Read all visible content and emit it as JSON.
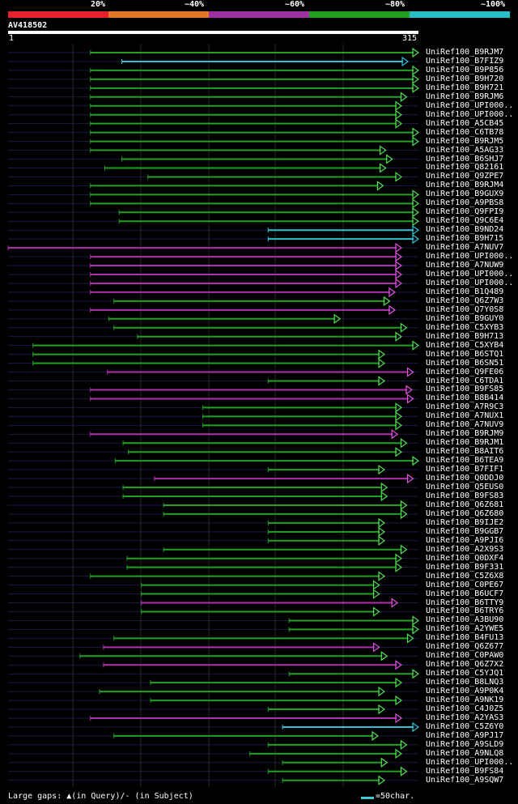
{
  "scale_bar": {
    "labels": [
      "20%",
      "~40%",
      "~60%",
      "~80%",
      "~100%"
    ],
    "colors": [
      "#e8202a",
      "#e07828",
      "#a030a0",
      "#20a020",
      "#28c0c8"
    ]
  },
  "query": {
    "id": "AV418502",
    "start": "1",
    "end": "315"
  },
  "colors": {
    "green": "#22a022",
    "magenta": "#b030b0",
    "cyan": "#30c0d0",
    "dark": "#1a1a4a",
    "arrow_green": "#50e050",
    "arrow_magenta": "#e050e0"
  },
  "hits": [
    {
      "label": "UniRef100_B9RJM7",
      "color": "green",
      "s": 64,
      "e": 315
    },
    {
      "label": "UniRef100_B7FIZ9",
      "color": "cyan",
      "s": 88,
      "e": 307
    },
    {
      "label": "UniRef100_B9P856",
      "color": "green",
      "s": 64,
      "e": 315
    },
    {
      "label": "UniRef100_B9H720",
      "color": "green",
      "s": 64,
      "e": 315
    },
    {
      "label": "UniRef100_B9H721",
      "color": "green",
      "s": 64,
      "e": 315
    },
    {
      "label": "UniRef100_B9RJM6",
      "color": "green",
      "s": 64,
      "e": 306
    },
    {
      "label": "UniRef100_UPI000..",
      "color": "green",
      "s": 64,
      "e": 302
    },
    {
      "label": "UniRef100_UPI000..",
      "color": "green",
      "s": 64,
      "e": 302
    },
    {
      "label": "UniRef100_A5CB45",
      "color": "green",
      "s": 64,
      "e": 302
    },
    {
      "label": "UniRef100_C6TB78",
      "color": "green",
      "s": 64,
      "e": 315
    },
    {
      "label": "UniRef100_B9RJM5",
      "color": "green",
      "s": 64,
      "e": 315
    },
    {
      "label": "UniRef100_A5AG33",
      "color": "green",
      "s": 64,
      "e": 290
    },
    {
      "label": "UniRef100_B6SHJ7",
      "color": "green",
      "s": 88,
      "e": 295
    },
    {
      "label": "UniRef100_Q82161",
      "color": "green",
      "s": 75,
      "e": 290
    },
    {
      "label": "UniRef100_Q9ZPE7",
      "color": "green",
      "s": 108,
      "e": 302
    },
    {
      "label": "UniRef100_B9RJM4",
      "color": "green",
      "s": 64,
      "e": 288
    },
    {
      "label": "UniRef100_B9GUX9",
      "color": "green",
      "s": 64,
      "e": 315
    },
    {
      "label": "UniRef100_A9PBS8",
      "color": "green",
      "s": 64,
      "e": 315
    },
    {
      "label": "UniRef100_Q9FPI9",
      "color": "green",
      "s": 86,
      "e": 315
    },
    {
      "label": "UniRef100_Q9C6E4",
      "color": "green",
      "s": 86,
      "e": 315
    },
    {
      "label": "UniRef100_B9ND24",
      "color": "cyan",
      "s": 200,
      "e": 315
    },
    {
      "label": "UniRef100_B9H715",
      "color": "cyan",
      "s": 200,
      "e": 315
    },
    {
      "label": "UniRef100_A7NUV7",
      "color": "magenta",
      "s": 1,
      "e": 302
    },
    {
      "label": "UniRef100_UPI000..",
      "color": "magenta",
      "s": 64,
      "e": 302
    },
    {
      "label": "UniRef100_A7NUW9",
      "color": "magenta",
      "s": 64,
      "e": 302
    },
    {
      "label": "UniRef100_UPI000..",
      "color": "magenta",
      "s": 64,
      "e": 302
    },
    {
      "label": "UniRef100_UPI000..",
      "color": "magenta",
      "s": 64,
      "e": 302
    },
    {
      "label": "UniRef100_B1Q489",
      "color": "magenta",
      "s": 64,
      "e": 297
    },
    {
      "label": "UniRef100_Q6Z7W3",
      "color": "green",
      "s": 82,
      "e": 293
    },
    {
      "label": "UniRef100_Q7Y0S8",
      "color": "magenta",
      "s": 64,
      "e": 297
    },
    {
      "label": "UniRef100_B9GUY0",
      "color": "green",
      "s": 78,
      "e": 255
    },
    {
      "label": "UniRef100_C5XYB3",
      "color": "green",
      "s": 82,
      "e": 306
    },
    {
      "label": "UniRef100_B9H713",
      "color": "green",
      "s": 100,
      "e": 302
    },
    {
      "label": "UniRef100_C5XYB4",
      "color": "green",
      "s": 20,
      "e": 315
    },
    {
      "label": "UniRef100_B6STQ1",
      "color": "green",
      "s": 20,
      "e": 289
    },
    {
      "label": "UniRef100_B6SN51",
      "color": "green",
      "s": 20,
      "e": 289
    },
    {
      "label": "UniRef100_Q9FE06",
      "color": "magenta",
      "s": 77,
      "e": 311
    },
    {
      "label": "UniRef100_C6TDA1",
      "color": "green",
      "s": 200,
      "e": 289
    },
    {
      "label": "UniRef100_B9FS85",
      "color": "magenta",
      "s": 64,
      "e": 310
    },
    {
      "label": "UniRef100_B8B414",
      "color": "magenta",
      "s": 64,
      "e": 311
    },
    {
      "label": "UniRef100_A7R9C3",
      "color": "green",
      "s": 150,
      "e": 302
    },
    {
      "label": "UniRef100_A7NUX1",
      "color": "green",
      "s": 150,
      "e": 302
    },
    {
      "label": "UniRef100_A7NUV9",
      "color": "green",
      "s": 150,
      "e": 302
    },
    {
      "label": "UniRef100_B9RJM9",
      "color": "magenta",
      "s": 64,
      "e": 299
    },
    {
      "label": "UniRef100_B9RJM1",
      "color": "green",
      "s": 89,
      "e": 306
    },
    {
      "label": "UniRef100_B8AIT6",
      "color": "green",
      "s": 93,
      "e": 302
    },
    {
      "label": "UniRef100_B6TEA9",
      "color": "green",
      "s": 83,
      "e": 315
    },
    {
      "label": "UniRef100_B7FIF1",
      "color": "green",
      "s": 200,
      "e": 289
    },
    {
      "label": "UniRef100_Q0DDJ0",
      "color": "magenta",
      "s": 113,
      "e": 311
    },
    {
      "label": "UniRef100_Q5EUS0",
      "color": "green",
      "s": 89,
      "e": 291
    },
    {
      "label": "UniRef100_B9FS83",
      "color": "green",
      "s": 89,
      "e": 291
    },
    {
      "label": "UniRef100_Q6Z681",
      "color": "green",
      "s": 120,
      "e": 306
    },
    {
      "label": "UniRef100_Q6Z680",
      "color": "green",
      "s": 120,
      "e": 306
    },
    {
      "label": "UniRef100_B9IJE2",
      "color": "green",
      "s": 200,
      "e": 289
    },
    {
      "label": "UniRef100_B9GGB7",
      "color": "green",
      "s": 200,
      "e": 289
    },
    {
      "label": "UniRef100_A9PJI6",
      "color": "green",
      "s": 200,
      "e": 289
    },
    {
      "label": "UniRef100_A2X9S3",
      "color": "green",
      "s": 120,
      "e": 306
    },
    {
      "label": "UniRef100_Q0DXF4",
      "color": "green",
      "s": 92,
      "e": 302
    },
    {
      "label": "UniRef100_B9F331",
      "color": "green",
      "s": 92,
      "e": 302
    },
    {
      "label": "UniRef100_C5Z6X8",
      "color": "green",
      "s": 64,
      "e": 289
    },
    {
      "label": "UniRef100_C0PE67",
      "color": "green",
      "s": 103,
      "e": 285
    },
    {
      "label": "UniRef100_B6UCF7",
      "color": "green",
      "s": 103,
      "e": 285
    },
    {
      "label": "UniRef100_B6TTY9",
      "color": "magenta",
      "s": 103,
      "e": 299
    },
    {
      "label": "UniRef100_B6TRY6",
      "color": "green",
      "s": 103,
      "e": 285
    },
    {
      "label": "UniRef100_A3BU90",
      "color": "green",
      "s": 216,
      "e": 315
    },
    {
      "label": "UniRef100_A2YWE5",
      "color": "green",
      "s": 216,
      "e": 315
    },
    {
      "label": "UniRef100_B4FU13",
      "color": "green",
      "s": 82,
      "e": 311
    },
    {
      "label": "UniRef100_Q6Z677",
      "color": "magenta",
      "s": 74,
      "e": 285
    },
    {
      "label": "UniRef100_C0PAW0",
      "color": "green",
      "s": 56,
      "e": 291
    },
    {
      "label": "UniRef100_Q6Z7X2",
      "color": "magenta",
      "s": 74,
      "e": 302
    },
    {
      "label": "UniRef100_C5YJQ1",
      "color": "green",
      "s": 216,
      "e": 315
    },
    {
      "label": "UniRef100_B8LNQ3",
      "color": "green",
      "s": 110,
      "e": 302
    },
    {
      "label": "UniRef100_A9P0K4",
      "color": "green",
      "s": 71,
      "e": 289
    },
    {
      "label": "UniRef100_A9NK19",
      "color": "green",
      "s": 110,
      "e": 302
    },
    {
      "label": "UniRef100_C4J0Z5",
      "color": "green",
      "s": 200,
      "e": 289
    },
    {
      "label": "UniRef100_A2YAS3",
      "color": "magenta",
      "s": 64,
      "e": 302
    },
    {
      "label": "UniRef100_C5Z6Y0",
      "color": "cyan",
      "s": 211,
      "e": 315
    },
    {
      "label": "UniRef100_A9PJ17",
      "color": "green",
      "s": 82,
      "e": 284
    },
    {
      "label": "UniRef100_A9SLD9",
      "color": "green",
      "s": 200,
      "e": 306
    },
    {
      "label": "UniRef100_A9NLQ8",
      "color": "green",
      "s": 186,
      "e": 302
    },
    {
      "label": "UniRef100_UPI000..",
      "color": "green",
      "s": 211,
      "e": 291
    },
    {
      "label": "UniRef100_B9FS84",
      "color": "green",
      "s": 200,
      "e": 306
    },
    {
      "label": "UniRef100_A9SQW7",
      "color": "green",
      "s": 211,
      "e": 289
    }
  ],
  "footer": {
    "gaps_label": "Large gaps: ▲(in Query)/- (in Subject)",
    "legend_label": "=50char."
  }
}
